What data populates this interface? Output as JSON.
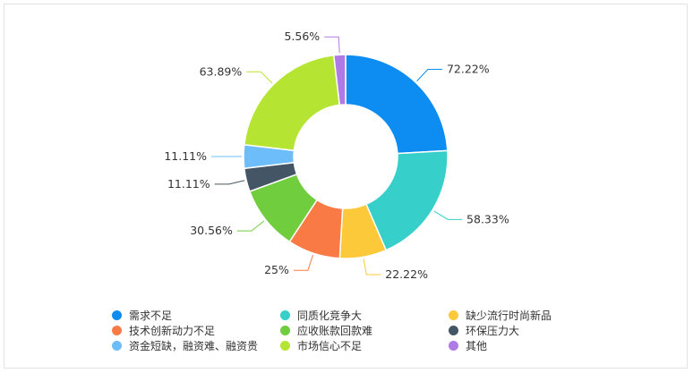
{
  "chart_data": {
    "type": "pie",
    "variant": "donut",
    "title": "",
    "categories": [
      "需求不足",
      "同质化竞争大",
      "缺少流行时尚新品",
      "技术创新动力不足",
      "应收账款回款难",
      "环保压力大",
      "资金短缺，融资难、融资贵",
      "市场信心不足",
      "其他"
    ],
    "values": [
      72.22,
      58.33,
      22.22,
      25,
      30.56,
      11.11,
      11.11,
      63.89,
      5.56
    ],
    "labels": [
      "72.22%",
      "58.33%",
      "22.22%",
      "25%",
      "30.56%",
      "11.11%",
      "11.11%",
      "63.89%",
      "5.56%"
    ],
    "colors": [
      "#0d8cf2",
      "#36cfc9",
      "#fcc93a",
      "#fa7a45",
      "#70cd3d",
      "#445666",
      "#6ebdfb",
      "#b6e432",
      "#b07ae6"
    ],
    "legend_position": "bottom"
  }
}
